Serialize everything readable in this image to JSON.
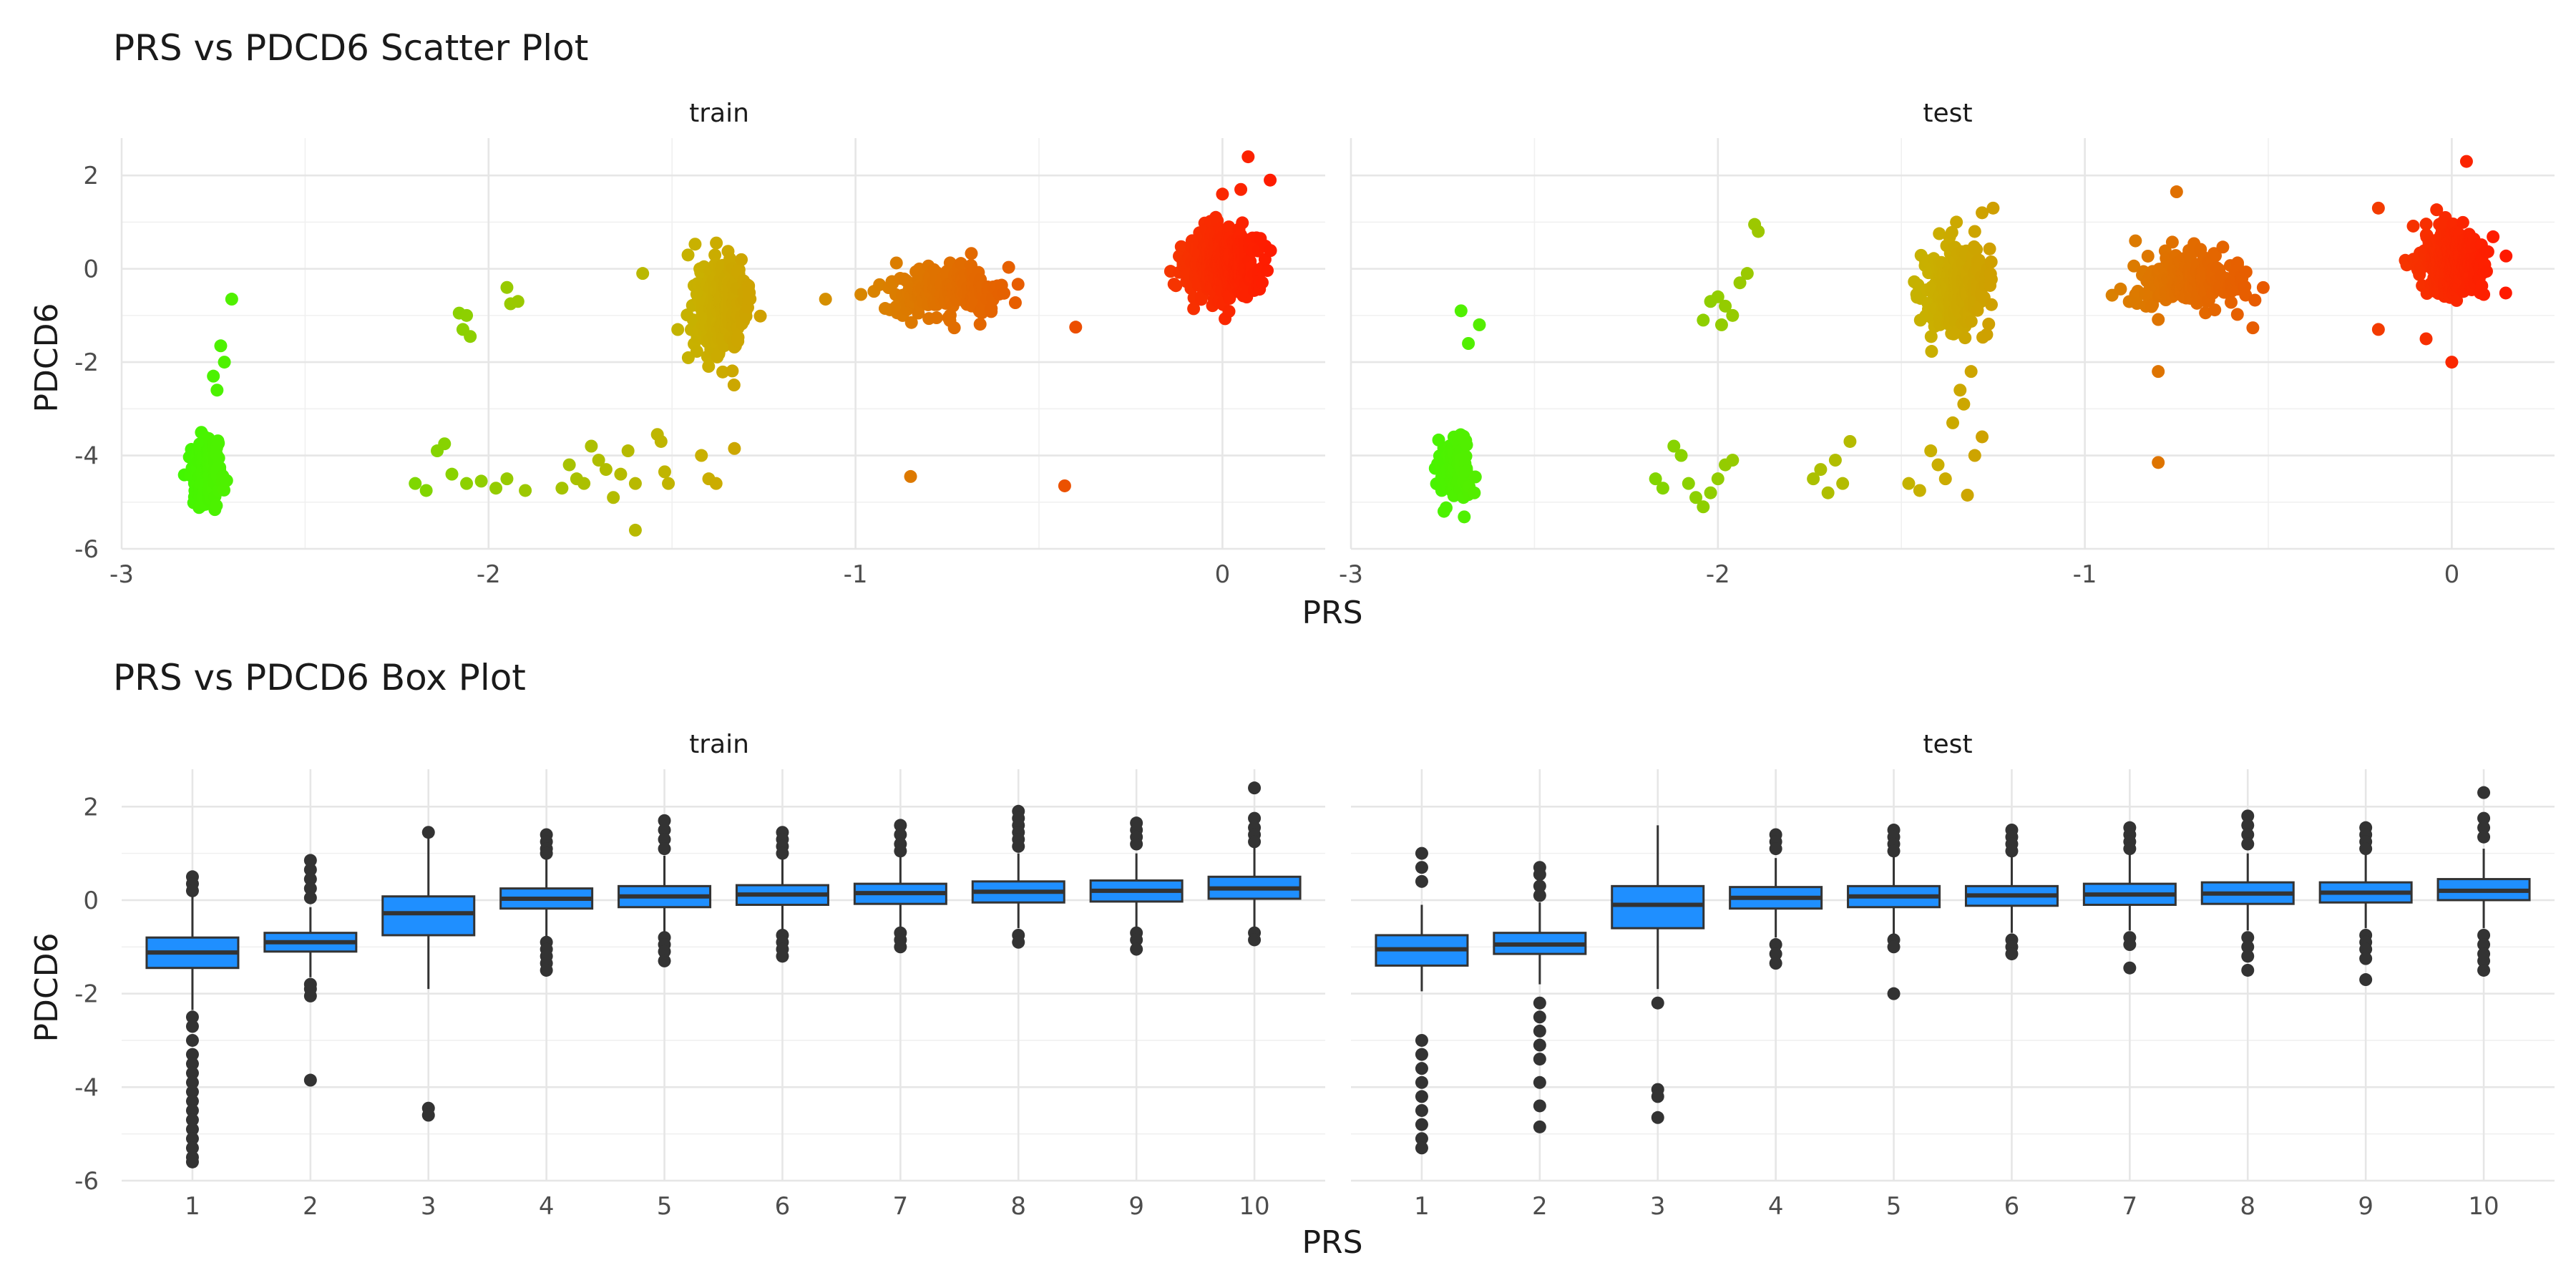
{
  "figure": {
    "scatter_title": "PRS vs PDCD6 Scatter Plot",
    "box_title": "PRS vs PDCD6 Box Plot",
    "panels": [
      "train",
      "test"
    ],
    "xlabel": "PRS",
    "ylabel": "PDCD6"
  },
  "colors": {
    "low": "#33ff00",
    "mid": "#c9b000",
    "high": "#ff1a00",
    "box_fill": "#1f8fff",
    "box_line": "#333333",
    "outlier": "#333333"
  },
  "chart_data": [
    {
      "type": "scatter",
      "title": "PRS vs PDCD6 Scatter Plot",
      "xlabel": "PRS",
      "ylabel": "PDCD6",
      "xlim": [
        -3,
        0.28
      ],
      "ylim": [
        -6,
        2.8
      ],
      "x_ticks": [
        -3,
        -2,
        -1,
        0
      ],
      "y_ticks": [
        -6,
        -4,
        -2,
        0,
        2
      ],
      "grid": true,
      "color_scale": "PRS (green = low, orange = mid, red = high)",
      "panels": [
        {
          "name": "train",
          "clusters": [
            {
              "x": -2.77,
              "y": -4.3,
              "n": 160,
              "sx": 0.03,
              "sy": 0.5
            },
            {
              "x": -1.37,
              "y": -0.8,
              "n": 340,
              "sx": 0.045,
              "sy": 0.65
            },
            {
              "x": -0.75,
              "y": -0.5,
              "n": 260,
              "sx": 0.11,
              "sy": 0.35
            },
            {
              "x": 0.0,
              "y": 0.1,
              "n": 600,
              "sx": 0.06,
              "sy": 0.45
            }
          ],
          "points": [
            [
              -2.7,
              -0.65
            ],
            [
              -2.73,
              -1.65
            ],
            [
              -2.72,
              -2.0
            ],
            [
              -2.75,
              -2.3
            ],
            [
              -2.74,
              -2.6
            ],
            [
              -2.08,
              -0.95
            ],
            [
              -2.06,
              -1.0
            ],
            [
              -2.07,
              -1.3
            ],
            [
              -2.05,
              -1.45
            ],
            [
              -1.95,
              -0.4
            ],
            [
              -1.92,
              -0.7
            ],
            [
              -1.94,
              -0.75
            ],
            [
              -2.2,
              -4.6
            ],
            [
              -2.17,
              -4.75
            ],
            [
              -2.14,
              -3.9
            ],
            [
              -2.12,
              -3.75
            ],
            [
              -2.1,
              -4.4
            ],
            [
              -2.06,
              -4.6
            ],
            [
              -2.02,
              -4.55
            ],
            [
              -1.98,
              -4.7
            ],
            [
              -1.95,
              -4.5
            ],
            [
              -1.9,
              -4.75
            ],
            [
              -1.8,
              -4.7
            ],
            [
              -1.78,
              -4.2
            ],
            [
              -1.76,
              -4.5
            ],
            [
              -1.74,
              -4.6
            ],
            [
              -1.72,
              -3.8
            ],
            [
              -1.7,
              -4.1
            ],
            [
              -1.68,
              -4.3
            ],
            [
              -1.66,
              -4.9
            ],
            [
              -1.64,
              -4.4
            ],
            [
              -1.62,
              -3.9
            ],
            [
              -1.6,
              -4.6
            ],
            [
              -1.54,
              -3.55
            ],
            [
              -1.53,
              -3.7
            ],
            [
              -1.52,
              -4.35
            ],
            [
              -1.51,
              -4.6
            ],
            [
              -1.6,
              -5.6
            ],
            [
              -1.58,
              -0.1
            ],
            [
              -1.42,
              -4.0
            ],
            [
              -1.4,
              -4.5
            ],
            [
              -1.38,
              -4.6
            ],
            [
              -1.33,
              -3.85
            ],
            [
              -0.85,
              -4.45
            ],
            [
              -0.43,
              -4.65
            ],
            [
              -0.4,
              -1.25
            ],
            [
              0.07,
              2.4
            ],
            [
              0.13,
              1.9
            ],
            [
              0.05,
              1.7
            ],
            [
              0.0,
              1.6
            ]
          ]
        },
        {
          "name": "test",
          "clusters": [
            {
              "x": -2.72,
              "y": -4.3,
              "n": 110,
              "sx": 0.03,
              "sy": 0.45
            },
            {
              "x": -1.35,
              "y": -0.4,
              "n": 300,
              "sx": 0.06,
              "sy": 0.55
            },
            {
              "x": -0.7,
              "y": -0.25,
              "n": 230,
              "sx": 0.1,
              "sy": 0.4
            },
            {
              "x": 0.0,
              "y": 0.15,
              "n": 450,
              "sx": 0.055,
              "sy": 0.45
            }
          ],
          "points": [
            [
              -2.7,
              -0.9
            ],
            [
              -2.68,
              -1.6
            ],
            [
              -2.65,
              -1.2
            ],
            [
              -2.0,
              -0.6
            ],
            [
              -1.98,
              -0.8
            ],
            [
              -1.96,
              -1.0
            ],
            [
              -1.94,
              -0.3
            ],
            [
              -1.92,
              -0.1
            ],
            [
              -1.9,
              0.95
            ],
            [
              -1.89,
              0.8
            ],
            [
              -2.04,
              -1.1
            ],
            [
              -1.99,
              -1.2
            ],
            [
              -2.02,
              -0.7
            ],
            [
              -2.17,
              -4.5
            ],
            [
              -2.15,
              -4.7
            ],
            [
              -2.12,
              -3.8
            ],
            [
              -2.1,
              -4.0
            ],
            [
              -2.08,
              -4.6
            ],
            [
              -2.06,
              -4.9
            ],
            [
              -2.04,
              -5.1
            ],
            [
              -2.02,
              -4.8
            ],
            [
              -2.0,
              -4.5
            ],
            [
              -1.98,
              -4.2
            ],
            [
              -1.96,
              -4.1
            ],
            [
              -1.74,
              -4.5
            ],
            [
              -1.72,
              -4.3
            ],
            [
              -1.7,
              -4.8
            ],
            [
              -1.68,
              -4.1
            ],
            [
              -1.66,
              -4.6
            ],
            [
              -1.64,
              -3.7
            ],
            [
              -1.48,
              -4.6
            ],
            [
              -1.45,
              -4.75
            ],
            [
              -1.42,
              -3.9
            ],
            [
              -1.4,
              -4.2
            ],
            [
              -1.38,
              -4.5
            ],
            [
              -1.36,
              -3.3
            ],
            [
              -1.34,
              -2.6
            ],
            [
              -1.33,
              -2.9
            ],
            [
              -1.31,
              -2.2
            ],
            [
              -1.3,
              -4.0
            ],
            [
              -1.32,
              -4.85
            ],
            [
              -1.28,
              -3.6
            ],
            [
              -1.35,
              1.0
            ],
            [
              -1.3,
              0.8
            ],
            [
              -1.28,
              1.2
            ],
            [
              -1.25,
              1.3
            ],
            [
              -0.8,
              -4.15
            ],
            [
              -0.8,
              -2.2
            ],
            [
              -0.75,
              1.65
            ],
            [
              0.04,
              2.3
            ],
            [
              0.0,
              -2.0
            ],
            [
              -0.07,
              -1.5
            ],
            [
              -0.2,
              -1.3
            ],
            [
              -0.2,
              1.3
            ]
          ]
        }
      ]
    },
    {
      "type": "box",
      "title": "PRS vs PDCD6 Box Plot",
      "xlabel": "PRS",
      "ylabel": "PDCD6",
      "categories": [
        "1",
        "2",
        "3",
        "4",
        "5",
        "6",
        "7",
        "8",
        "9",
        "10"
      ],
      "ylim": [
        -6,
        2.8
      ],
      "y_ticks": [
        -6,
        -4,
        -2,
        0,
        2
      ],
      "grid": true,
      "panels": [
        {
          "name": "train",
          "boxes": [
            {
              "q1": -1.45,
              "med": -1.12,
              "q3": -0.8,
              "lo": -2.35,
              "hi": 0.1,
              "out": [
                0.5,
                0.35,
                0.2,
                -2.5,
                -2.7,
                -3.0,
                -3.3,
                -3.5,
                -3.7,
                -3.9,
                -4.1,
                -4.3,
                -4.5,
                -4.7,
                -4.9,
                -5.1,
                -5.3,
                -5.5,
                -5.6
              ]
            },
            {
              "q1": -1.1,
              "med": -0.9,
              "q3": -0.7,
              "lo": -1.65,
              "hi": -0.15,
              "out": [
                0.85,
                0.65,
                0.45,
                0.25,
                0.05,
                -1.8,
                -1.9,
                -2.05,
                -3.85
              ]
            },
            {
              "q1": -0.75,
              "med": -0.28,
              "q3": 0.08,
              "lo": -1.9,
              "hi": 1.35,
              "out": [
                1.45,
                -4.45,
                -4.6
              ]
            },
            {
              "q1": -0.18,
              "med": 0.03,
              "q3": 0.25,
              "lo": -0.78,
              "hi": 0.88,
              "out": [
                1.4,
                1.25,
                1.1,
                1.0,
                -0.9,
                -1.05,
                -1.2,
                -1.35,
                -1.5
              ]
            },
            {
              "q1": -0.15,
              "med": 0.08,
              "q3": 0.3,
              "lo": -0.75,
              "hi": 0.95,
              "out": [
                1.7,
                1.5,
                1.3,
                1.1,
                -0.8,
                -0.95,
                -1.1,
                -1.3
              ]
            },
            {
              "q1": -0.1,
              "med": 0.12,
              "q3": 0.32,
              "lo": -0.65,
              "hi": 0.95,
              "out": [
                1.45,
                1.3,
                1.15,
                1.0,
                -0.75,
                -0.9,
                -1.05,
                -1.2
              ]
            },
            {
              "q1": -0.08,
              "med": 0.15,
              "q3": 0.35,
              "lo": -0.62,
              "hi": 0.98,
              "out": [
                1.6,
                1.4,
                1.2,
                1.05,
                -0.7,
                -0.85,
                -1.0
              ]
            },
            {
              "q1": -0.05,
              "med": 0.18,
              "q3": 0.4,
              "lo": -0.6,
              "hi": 1.0,
              "out": [
                1.9,
                1.75,
                1.6,
                1.45,
                1.3,
                1.15,
                -0.75,
                -0.9
              ]
            },
            {
              "q1": -0.03,
              "med": 0.2,
              "q3": 0.42,
              "lo": -0.58,
              "hi": 1.0,
              "out": [
                1.65,
                1.5,
                1.35,
                1.2,
                -0.7,
                -0.85,
                -1.05
              ]
            },
            {
              "q1": 0.03,
              "med": 0.25,
              "q3": 0.5,
              "lo": -0.6,
              "hi": 1.15,
              "out": [
                2.4,
                1.75,
                1.55,
                1.4,
                1.25,
                -0.7,
                -0.85
              ]
            }
          ]
        },
        {
          "name": "test",
          "boxes": [
            {
              "q1": -1.4,
              "med": -1.05,
              "q3": -0.75,
              "lo": -1.95,
              "hi": -0.1,
              "out": [
                1.0,
                0.7,
                0.4,
                -3.0,
                -3.3,
                -3.6,
                -3.9,
                -4.2,
                -4.5,
                -4.8,
                -5.1,
                -5.3
              ]
            },
            {
              "q1": -1.15,
              "med": -0.95,
              "q3": -0.7,
              "lo": -1.8,
              "hi": -0.05,
              "out": [
                0.7,
                0.55,
                0.3,
                0.1,
                -2.2,
                -2.5,
                -2.8,
                -3.1,
                -3.4,
                -3.9,
                -4.4,
                -4.85
              ]
            },
            {
              "q1": -0.6,
              "med": -0.1,
              "q3": 0.3,
              "lo": -1.9,
              "hi": 1.6,
              "out": [
                -2.2,
                -4.05,
                -4.2,
                -4.65
              ]
            },
            {
              "q1": -0.18,
              "med": 0.05,
              "q3": 0.28,
              "lo": -0.8,
              "hi": 0.9,
              "out": [
                1.4,
                1.25,
                1.1,
                -0.95,
                -1.15,
                -1.35
              ]
            },
            {
              "q1": -0.15,
              "med": 0.08,
              "q3": 0.3,
              "lo": -0.75,
              "hi": 0.95,
              "out": [
                1.5,
                1.35,
                1.2,
                1.05,
                -0.85,
                -1.0,
                -2.0
              ]
            },
            {
              "q1": -0.12,
              "med": 0.1,
              "q3": 0.3,
              "lo": -0.7,
              "hi": 0.95,
              "out": [
                1.5,
                1.35,
                1.2,
                1.05,
                -0.85,
                -1.0,
                -1.15
              ]
            },
            {
              "q1": -0.1,
              "med": 0.12,
              "q3": 0.35,
              "lo": -0.65,
              "hi": 0.98,
              "out": [
                1.55,
                1.4,
                1.25,
                1.1,
                -0.8,
                -0.95,
                -1.45
              ]
            },
            {
              "q1": -0.08,
              "med": 0.14,
              "q3": 0.38,
              "lo": -0.65,
              "hi": 1.0,
              "out": [
                1.8,
                1.6,
                1.4,
                1.2,
                -0.8,
                -1.0,
                -1.2,
                -1.5
              ]
            },
            {
              "q1": -0.05,
              "med": 0.16,
              "q3": 0.38,
              "lo": -0.6,
              "hi": 1.0,
              "out": [
                1.55,
                1.4,
                1.25,
                1.1,
                -0.75,
                -0.9,
                -1.05,
                -1.25,
                -1.7
              ]
            },
            {
              "q1": 0.0,
              "med": 0.2,
              "q3": 0.45,
              "lo": -0.6,
              "hi": 1.1,
              "out": [
                2.3,
                1.75,
                1.55,
                1.35,
                -0.75,
                -0.95,
                -1.15,
                -1.3,
                -1.5
              ]
            }
          ]
        }
      ]
    }
  ]
}
